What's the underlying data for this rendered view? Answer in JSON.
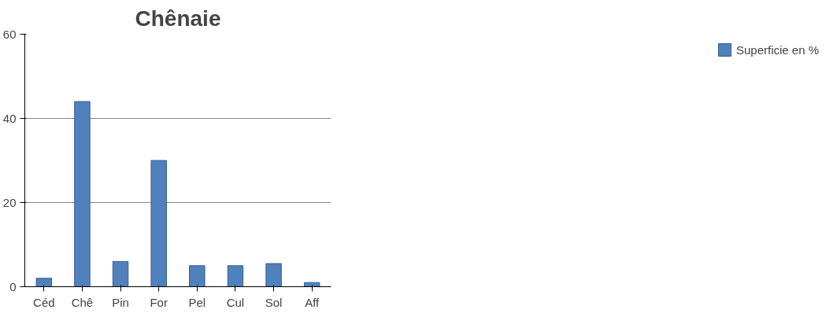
{
  "chart_data": {
    "type": "bar",
    "title": "Chênaie",
    "categories": [
      "Céd",
      "Chê",
      "Pin",
      "For",
      "Pel",
      "Cul",
      "Sol",
      "Aff"
    ],
    "series": [
      {
        "name": "Superficie en %",
        "color": "#4f81bd",
        "values": [
          2,
          44,
          6,
          30,
          5,
          5,
          5.5,
          1
        ]
      }
    ],
    "ylim": [
      0,
      60
    ],
    "yticks": [
      0,
      20,
      40,
      60
    ],
    "grid": "y",
    "legend": "right"
  }
}
